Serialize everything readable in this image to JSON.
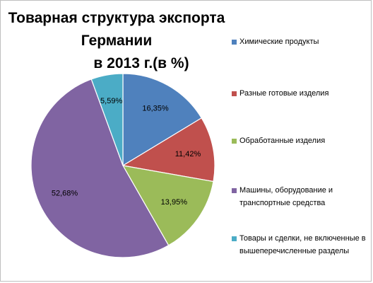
{
  "chart_data": {
    "type": "pie",
    "title_lines": [
      "Товарная структура экспорта Германии",
      "в 2013 г.(в %)"
    ],
    "series": [
      {
        "name": "Химические  продукты",
        "value": 16.35,
        "label": "16,35%",
        "color": "#4f81bd"
      },
      {
        "name": "Разные готовые изделия",
        "value": 11.42,
        "label": "11,42%",
        "color": "#c0504d"
      },
      {
        "name": "Обработанные изделия",
        "value": 13.95,
        "label": "13,95%",
        "color": "#9bbb59"
      },
      {
        "name": "Машины, оборудование и транспортные средства",
        "value": 52.68,
        "label": "52,68%",
        "color": "#8064a2"
      },
      {
        "name": "Товары и сделки,  не включенные  в вышеперечисленные  разделы",
        "value": 5.59,
        "label": "5,59%",
        "color": "#4bacc6"
      }
    ],
    "legend_position": "right"
  }
}
